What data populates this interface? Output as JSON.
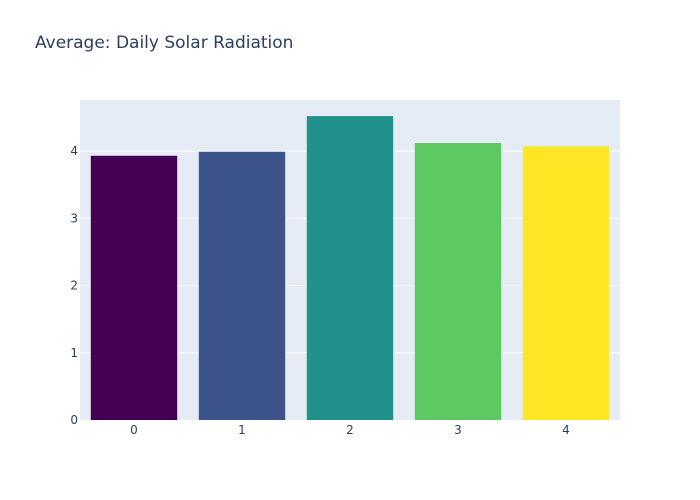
{
  "chart_data": {
    "type": "bar",
    "title": "Average: Daily Solar Radiation",
    "xlabel": "",
    "ylabel": "",
    "categories": [
      "0",
      "1",
      "2",
      "3",
      "4"
    ],
    "values": [
      3.93,
      3.99,
      4.52,
      4.12,
      4.07
    ],
    "colors": [
      "#440154",
      "#3b528b",
      "#21918c",
      "#5ec962",
      "#fde725"
    ],
    "y_ticks": [
      0,
      1,
      2,
      3,
      4
    ],
    "ylim": [
      0,
      4.76
    ],
    "grid": true,
    "plot_background": "#e5ecf6",
    "gridline_color": "#ffffff",
    "text_color": "#2a3f5f"
  }
}
